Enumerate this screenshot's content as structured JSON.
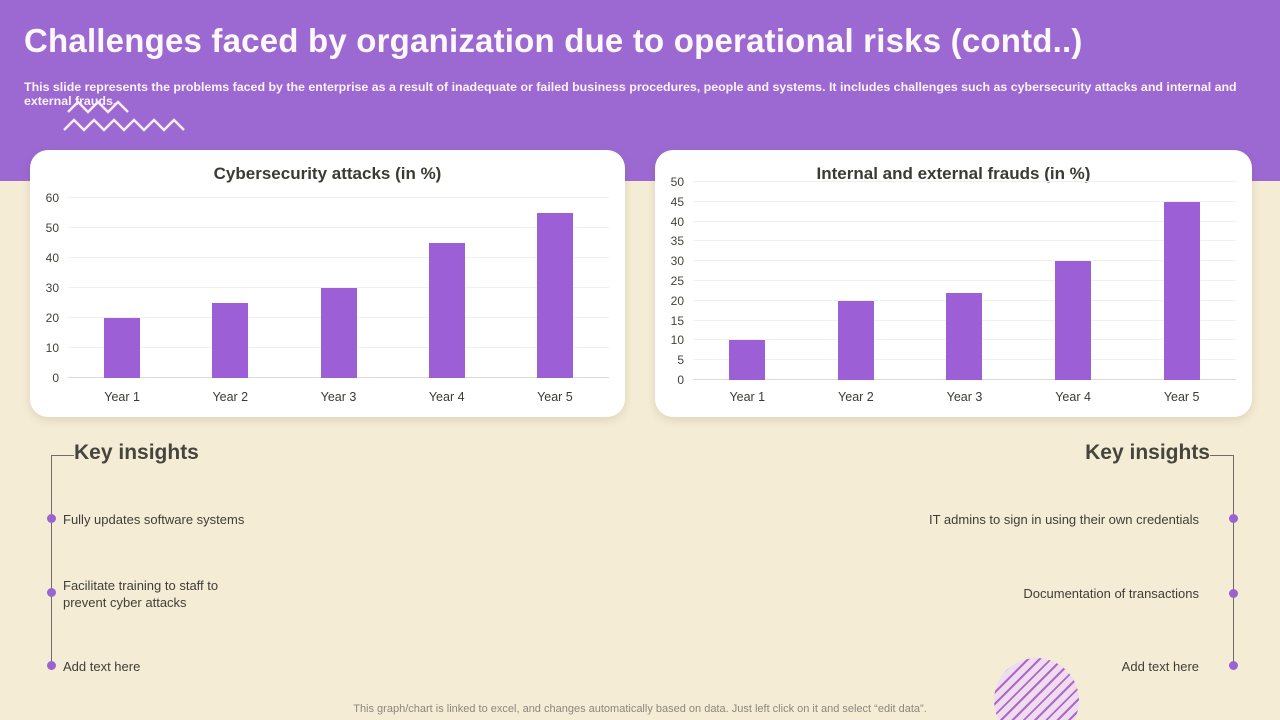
{
  "slide": {
    "title": "Challenges faced by organization due to operational risks (contd..)",
    "subtitle": "This slide represents the problems faced by the enterprise as a result of inadequate or failed business procedures, people and systems. It includes challenges such as cybersecurity attacks and internal and external frauds.",
    "footer_note": "This graph/chart is linked to excel, and changes automatically based on data. Just left click on it and select “edit data”."
  },
  "chart_data": [
    {
      "type": "bar",
      "title": "Cybersecurity attacks (in %)",
      "categories": [
        "Year 1",
        "Year 2",
        "Year 3",
        "Year 4",
        "Year 5"
      ],
      "values": [
        20,
        25,
        30,
        45,
        55
      ],
      "xlabel": "",
      "ylabel": "",
      "ylim": [
        0,
        60
      ],
      "ytick_step": 10,
      "grid": true,
      "legend": false,
      "bar_color": "#9c5fd5"
    },
    {
      "type": "bar",
      "title": "Internal and external frauds (in %)",
      "categories": [
        "Year 1",
        "Year 2",
        "Year 3",
        "Year 4",
        "Year 5"
      ],
      "values": [
        10,
        20,
        22,
        30,
        45
      ],
      "xlabel": "",
      "ylabel": "",
      "ylim": [
        0,
        50
      ],
      "ytick_step": 5,
      "grid": true,
      "legend": false,
      "bar_color": "#9c5fd5"
    }
  ],
  "insights_left": {
    "title": "Key insights",
    "items": [
      "Fully updates software systems",
      "Facilitate training to staff to prevent cyber attacks",
      "Add text here"
    ]
  },
  "insights_right": {
    "title": "Key insights",
    "items": [
      "IT admins to sign in using their own credentials",
      "Documentation of transactions",
      "Add text here"
    ]
  },
  "colors": {
    "header_purple": "#9c69d2",
    "background_cream": "#f5ecd6",
    "bar_purple": "#9c5fd5",
    "accent_dot": "#9a63cf",
    "text_dark": "#3e3e37",
    "footer_gray": "#8a877c"
  }
}
